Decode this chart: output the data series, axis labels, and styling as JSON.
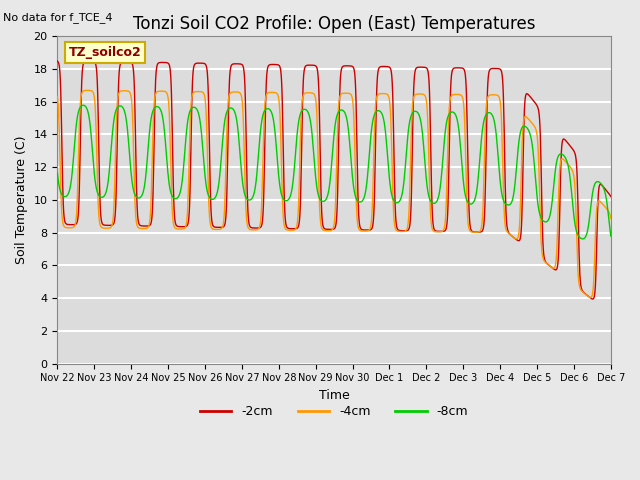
{
  "title": "Tonzi Soil CO2 Profile: Open (East) Temperatures",
  "no_data_text": "No data for f_TCE_4",
  "legend_box_text": "TZ_soilco2",
  "xlabel": "Time",
  "ylabel": "Soil Temperature (C)",
  "ylim": [
    0,
    20
  ],
  "yticks": [
    0,
    2,
    4,
    6,
    8,
    10,
    12,
    14,
    16,
    18,
    20
  ],
  "xtick_labels": [
    "Nov 22",
    "Nov 23",
    "Nov 24",
    "Nov 25",
    "Nov 26",
    "Nov 27",
    "Nov 28",
    "Nov 29",
    "Nov 30",
    "Dec 1",
    "Dec 2",
    "Dec 3",
    "Dec 4",
    "Dec 5",
    "Dec 6",
    "Dec 7"
  ],
  "line_colors": [
    "#cc0000",
    "#ff9900",
    "#00cc00"
  ],
  "line_labels": [
    "-2cm",
    "-4cm",
    "-8cm"
  ],
  "fig_bg_color": "#e8e8e8",
  "plot_bg_color": "#dcdcdc",
  "grid_color": "#ffffff",
  "title_fontsize": 12,
  "axis_fontsize": 9,
  "tick_fontsize": 8
}
